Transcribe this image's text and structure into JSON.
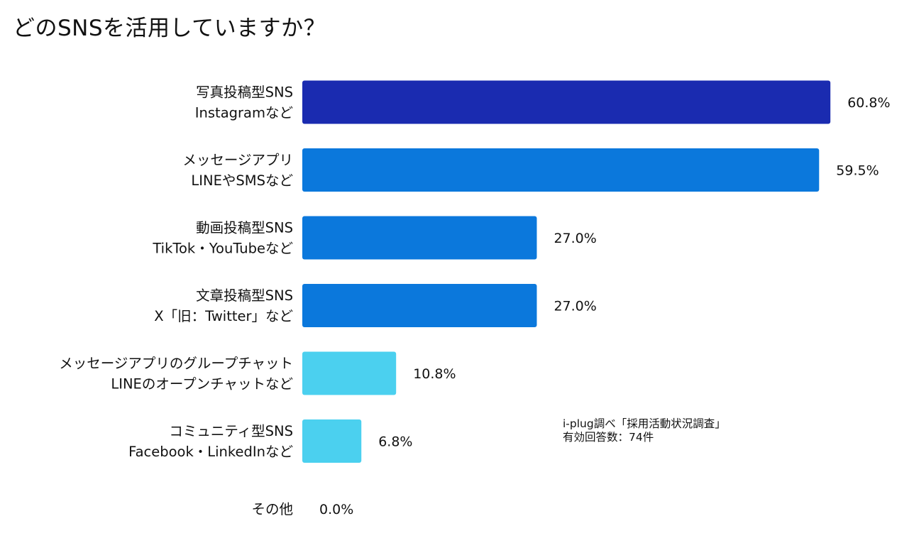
{
  "title": "どのSNSを活用していますか？",
  "source": {
    "line1": "i-plug調べ「採用活動状況調査」",
    "line2": "有効回答数：74件"
  },
  "colors": {
    "dark": "#1a2bb0",
    "mid": "#0b78dc",
    "light": "#4bd0ef"
  },
  "chart_data": {
    "type": "bar",
    "orientation": "horizontal",
    "categories": [
      [
        "写真投稿型SNS",
        "Instagramなど"
      ],
      [
        "メッセージアプリ",
        "LINEやSMSなど"
      ],
      [
        "動画投稿型SNS",
        "TikTok・YouTubeなど"
      ],
      [
        "文章投稿型SNS",
        "X「旧：Twitter」など"
      ],
      [
        "メッセージアプリのグループチャット",
        "LINEのオープンチャットなど"
      ],
      [
        "コミュニティ型SNS",
        "Facebook・LinkedInなど"
      ],
      [
        "その他"
      ]
    ],
    "values": [
      60.8,
      59.5,
      27.0,
      27.0,
      10.8,
      6.8,
      0.0
    ],
    "value_labels": [
      "60.8%",
      "59.5%",
      "27.0%",
      "27.0%",
      "10.8%",
      "6.8%",
      "0.0%"
    ],
    "bar_colors": [
      "dark",
      "mid",
      "mid",
      "mid",
      "light",
      "light",
      "light"
    ],
    "unit": "%",
    "grid": false,
    "legend": false
  }
}
